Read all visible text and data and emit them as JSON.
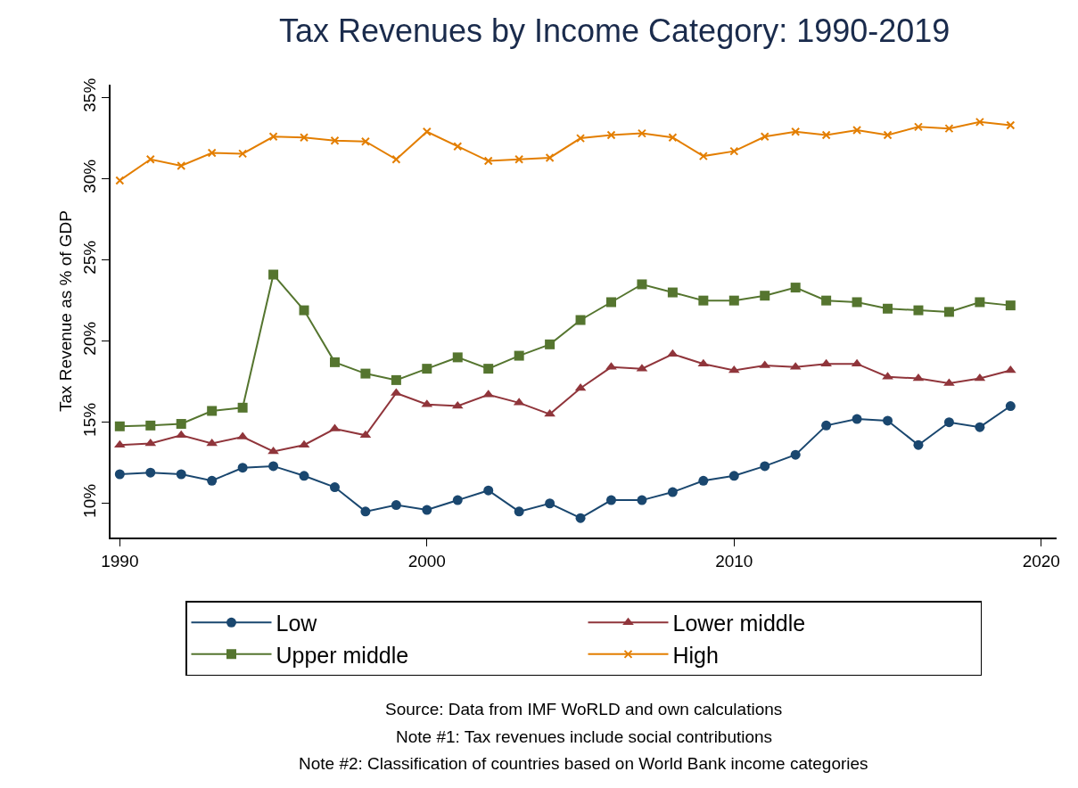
{
  "chart_data": {
    "type": "line",
    "title": "Tax Revenues by Income Category: 1990-2019",
    "ylabel": "Tax Revenue as % of GDP",
    "x": [
      1990,
      1991,
      1992,
      1993,
      1994,
      1995,
      1996,
      1997,
      1998,
      1999,
      2000,
      2001,
      2002,
      2003,
      2004,
      2005,
      2006,
      2007,
      2008,
      2009,
      2010,
      2011,
      2012,
      2013,
      2014,
      2015,
      2016,
      2017,
      2018,
      2019
    ],
    "series": [
      {
        "name": "Low",
        "color": "#1a476f",
        "marker": "circle",
        "values": [
          11.8,
          11.9,
          11.8,
          11.4,
          12.2,
          12.3,
          11.7,
          11.0,
          9.5,
          9.9,
          9.6,
          10.2,
          10.8,
          9.5,
          10.0,
          9.1,
          10.2,
          10.2,
          10.7,
          11.4,
          11.7,
          12.3,
          13.0,
          14.8,
          15.2,
          15.1,
          13.6,
          15.0,
          14.7,
          16.0
        ]
      },
      {
        "name": "Lower middle",
        "color": "#90353b",
        "marker": "triangle",
        "values": [
          13.6,
          13.7,
          14.2,
          13.7,
          14.1,
          13.2,
          13.6,
          14.6,
          14.2,
          16.8,
          16.1,
          16.0,
          16.7,
          16.2,
          15.5,
          17.1,
          18.4,
          18.3,
          19.2,
          18.6,
          18.2,
          18.5,
          18.4,
          18.6,
          18.6,
          17.8,
          17.7,
          17.4,
          17.7,
          18.2
        ]
      },
      {
        "name": "Upper middle",
        "color": "#55752f",
        "marker": "square",
        "values": [
          14.75,
          14.8,
          14.9,
          15.7,
          15.9,
          24.1,
          21.9,
          18.7,
          18.0,
          17.6,
          18.3,
          19.0,
          18.3,
          19.1,
          19.8,
          21.3,
          22.4,
          23.5,
          23.0,
          22.5,
          22.5,
          22.8,
          23.3,
          22.5,
          22.4,
          22.0,
          21.9,
          21.8,
          22.4,
          22.2
        ]
      },
      {
        "name": "High",
        "color": "#e37e00",
        "marker": "cross",
        "values": [
          29.9,
          31.2,
          30.8,
          31.6,
          31.55,
          32.6,
          32.55,
          32.35,
          32.3,
          31.2,
          32.9,
          32.0,
          31.1,
          31.2,
          31.3,
          32.5,
          32.7,
          32.8,
          32.55,
          31.4,
          31.7,
          32.6,
          32.9,
          32.7,
          33.0,
          32.7,
          33.2,
          33.1,
          33.5,
          33.3
        ]
      }
    ],
    "xlim": [
      1989.7,
      2020.5
    ],
    "xticks": [
      1990,
      2000,
      2010,
      2020
    ],
    "ylim": [
      7.9,
      35.8
    ],
    "yticks": [
      {
        "value": 10,
        "label": "10%"
      },
      {
        "value": 15,
        "label": "15%"
      },
      {
        "value": 20,
        "label": "20%"
      },
      {
        "value": 25,
        "label": "25%"
      },
      {
        "value": 30,
        "label": "30%"
      },
      {
        "value": 35,
        "label": "35%"
      }
    ],
    "grid": false,
    "legend": "bottom",
    "line_style": "solid",
    "annotations": [
      "Source: Data from IMF WoRLD and own calculations",
      "Note #1: Tax revenues include social contributions",
      "Note #2: Classification of countries based on World Bank income categories"
    ]
  }
}
